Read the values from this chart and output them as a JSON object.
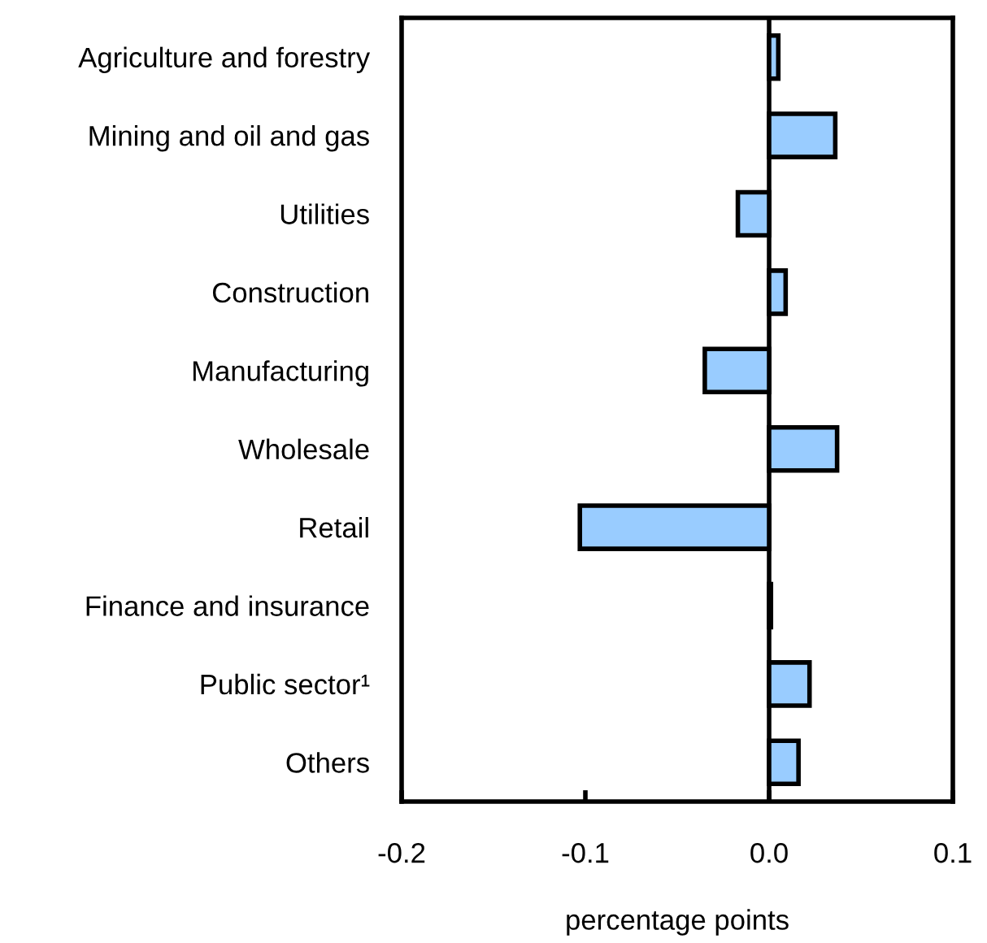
{
  "chart_data": {
    "type": "bar",
    "orientation": "horizontal",
    "xlabel": "percentage points",
    "categories": [
      "Agriculture and forestry",
      "Mining and oil and gas",
      "Utilities",
      "Construction",
      "Manufacturing",
      "Wholesale",
      "Retail",
      "Finance and insurance",
      "Public sector¹",
      "Others"
    ],
    "values": [
      0.005,
      0.036,
      -0.017,
      0.009,
      -0.035,
      0.037,
      -0.103,
      0.001,
      0.022,
      0.016
    ],
    "color": "#99ccff",
    "xlim": [
      -0.2,
      0.1
    ],
    "xticks": [
      -0.2,
      -0.1,
      {
        "value": 0,
        "label": "0.0"
      },
      0.1
    ],
    "ref_lines": [
      {
        "axis": "x",
        "value": 0
      }
    ],
    "grid": false
  }
}
